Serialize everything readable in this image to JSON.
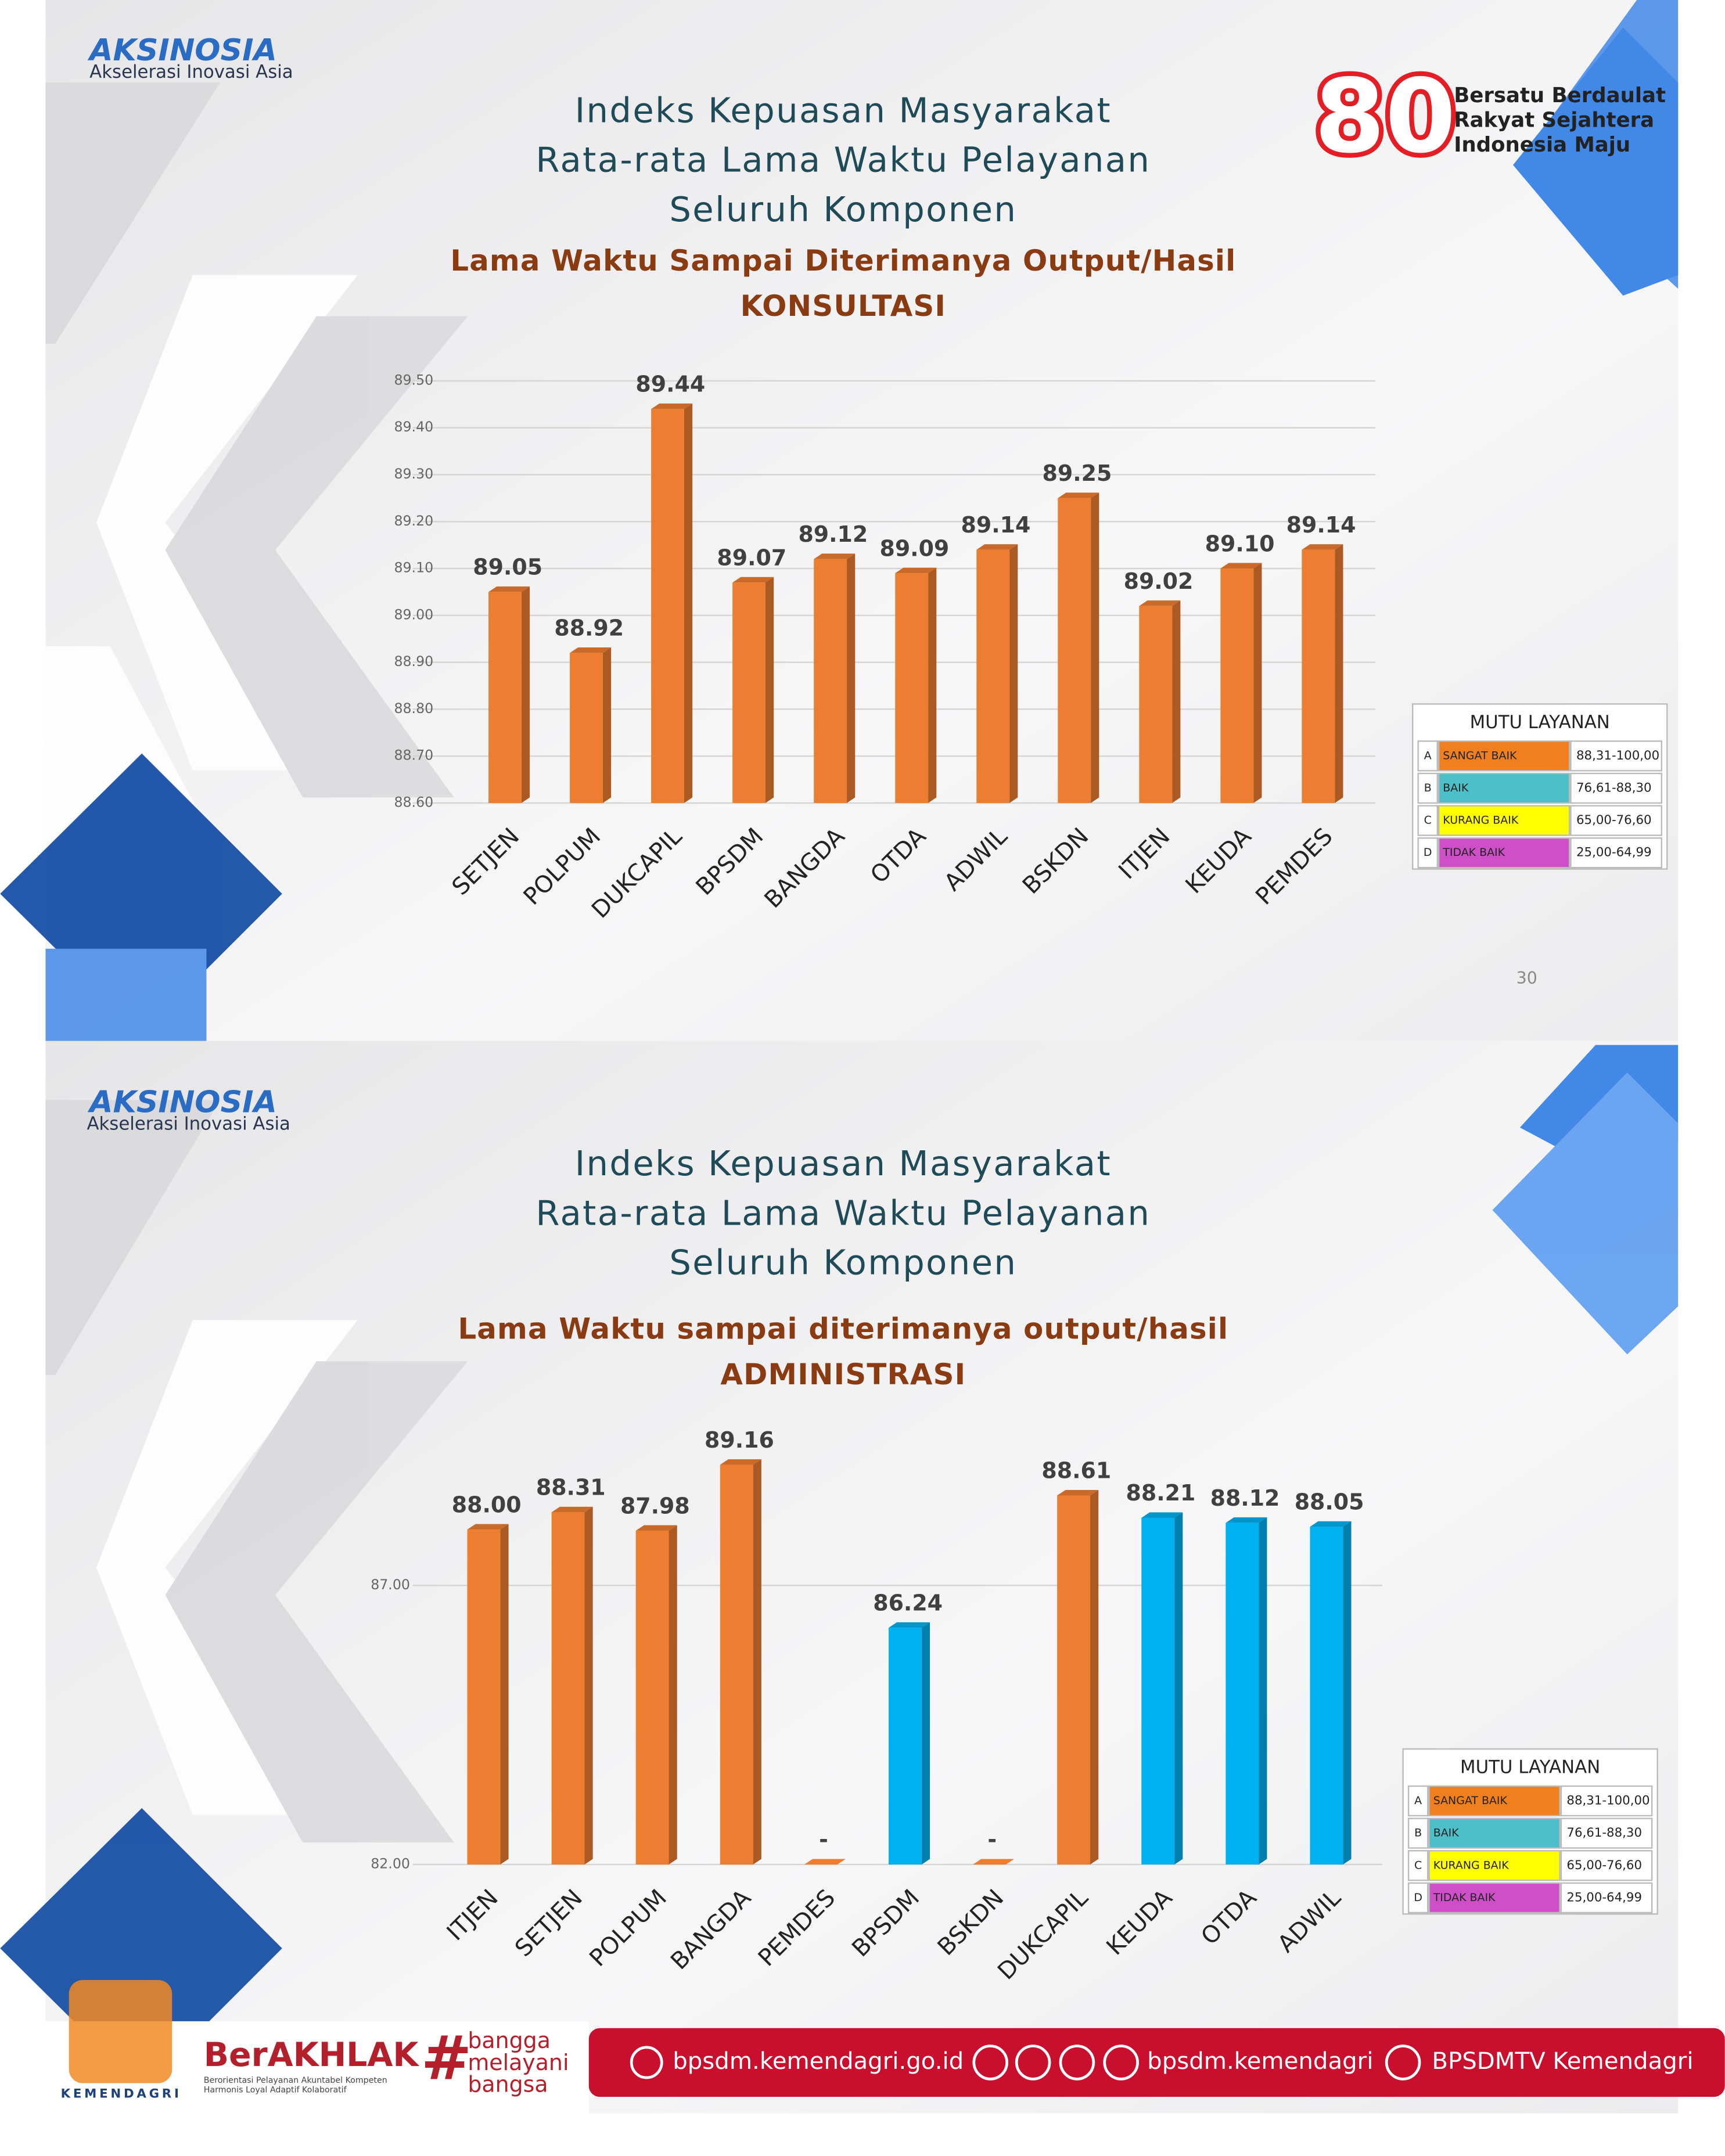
{
  "chart_data": [
    {
      "type": "bar",
      "title": [
        "Indeks Kepuasan Masyarakat",
        "Rata-rata Lama Waktu Pelayanan",
        "Seluruh Komponen"
      ],
      "subtitle": [
        "Lama Waktu Sampai Diterimanya Output/Hasil",
        "KONSULTASI"
      ],
      "categories": [
        "SETJEN",
        "POLPUM",
        "DUKCAPIL",
        "BPSDM",
        "BANGDA",
        "OTDA",
        "ADWIL",
        "BSKDN",
        "ITJEN",
        "KEUDA",
        "PEMDES"
      ],
      "values": [
        89.05,
        88.92,
        89.44,
        89.07,
        89.12,
        89.09,
        89.14,
        89.25,
        89.02,
        89.1,
        89.14
      ],
      "value_labels": [
        "89.05",
        "88.92",
        "89.44",
        "89.07",
        "89.12",
        "89.09",
        "89.14",
        "89.25",
        "89.02",
        "89.10",
        "89.14"
      ],
      "color": "#ed7d31",
      "ylim": [
        88.6,
        89.5
      ],
      "yticks": [
        {
          "value": 88.6,
          "label": "88.60"
        },
        {
          "value": 88.7,
          "label": "88.70"
        },
        {
          "value": 88.8,
          "label": "88.80"
        },
        {
          "value": 88.9,
          "label": "88.90"
        },
        {
          "value": 89.0,
          "label": "89.00"
        },
        {
          "value": 89.1,
          "label": "89.10"
        },
        {
          "value": 89.2,
          "label": "89.20"
        },
        {
          "value": 89.3,
          "label": "89.30"
        },
        {
          "value": 89.4,
          "label": "89.40"
        },
        {
          "value": 89.5,
          "label": "89.50"
        }
      ],
      "grid": true
    },
    {
      "type": "bar",
      "title": [
        "Indeks Kepuasan Masyarakat",
        "Rata-rata Lama Waktu Pelayanan",
        "Seluruh Komponen"
      ],
      "subtitle": [
        "Lama Waktu sampai diterimanya output/hasil",
        "ADMINISTRASI"
      ],
      "categories": [
        "ITJEN",
        "SETJEN",
        "POLPUM",
        "BANGDA",
        "PEMDES",
        "BPSDM",
        "BSKDN",
        "DUKCAPIL",
        "KEUDA",
        "OTDA",
        "ADWIL"
      ],
      "values": [
        88.0,
        88.31,
        87.98,
        89.16,
        null,
        86.24,
        null,
        88.61,
        88.21,
        88.12,
        88.05
      ],
      "value_labels": [
        "88.00",
        "88.31",
        "87.98",
        "89.16",
        "-",
        "86.24",
        "-",
        "88.61",
        "88.21",
        "88.12",
        "88.05"
      ],
      "colors": [
        "#ed7d31",
        "#ed7d31",
        "#ed7d31",
        "#ed7d31",
        "#ed7d31",
        "#00b0f0",
        "#ed7d31",
        "#ed7d31",
        "#00b0f0",
        "#00b0f0",
        "#00b0f0"
      ],
      "ylim": [
        82,
        89.5
      ],
      "yticks": [
        {
          "value": 82,
          "label": "82.00"
        },
        {
          "value": 87,
          "label": "87.00"
        }
      ],
      "grid": true
    }
  ],
  "slides": [
    {
      "logo": "AKSINOSIA",
      "logo_tagline": "Akselerasi Inovasi Asia",
      "page_number": "30",
      "mutu": {
        "title": "MUTU LAYANAN",
        "rows": [
          {
            "code": "A",
            "name": "SANGAT BAIK",
            "range": "88,31-100,00",
            "color": "#f07f1e"
          },
          {
            "code": "B",
            "name": "BAIK",
            "range": "76,61-88,30",
            "color": "#4cbfc9"
          },
          {
            "code": "C",
            "name": "KURANG BAIK",
            "range": "65,00-76,60",
            "color": "#ffff00"
          },
          {
            "code": "D",
            "name": "TIDAK BAIK",
            "range": "25,00-64,99",
            "color": "#cf4fc8"
          }
        ]
      }
    },
    {
      "logo": "AKSINOSIA",
      "logo_tagline": "Akselerasi Inovasi Asia",
      "mutu": {
        "title": "MUTU LAYANAN",
        "rows": [
          {
            "code": "A",
            "name": "SANGAT BAIK",
            "range": "88,31-100,00",
            "color": "#f07f1e"
          },
          {
            "code": "B",
            "name": "BAIK",
            "range": "76,61-88,30",
            "color": "#4cbfc9"
          },
          {
            "code": "C",
            "name": "KURANG BAIK",
            "range": "65,00-76,60",
            "color": "#ffff00"
          },
          {
            "code": "D",
            "name": "TIDAK BAIK",
            "range": "25,00-64,99",
            "color": "#cf4fc8"
          }
        ]
      }
    }
  ],
  "badge": {
    "number": "80",
    "lines": [
      "Bersatu Berdaulat",
      "Rakyat Sejahtera",
      "Indonesia Maju"
    ]
  },
  "footer": {
    "org": "KEMENDAGRI",
    "berakhlak": "BerAKHLAK",
    "berakhlak_lines": [
      "Berorientasi Pelayanan Akuntabel Kompeten",
      "Harmonis Loyal Adaptif Kolaboratif"
    ],
    "hashtag": "#",
    "slogan": [
      "bangga",
      "melayani",
      "bangsa"
    ],
    "website": "bpsdm.kemendagri.go.id",
    "social": "bpsdm.kemendagri",
    "youtube": "BPSDMTV Kemendagri"
  }
}
